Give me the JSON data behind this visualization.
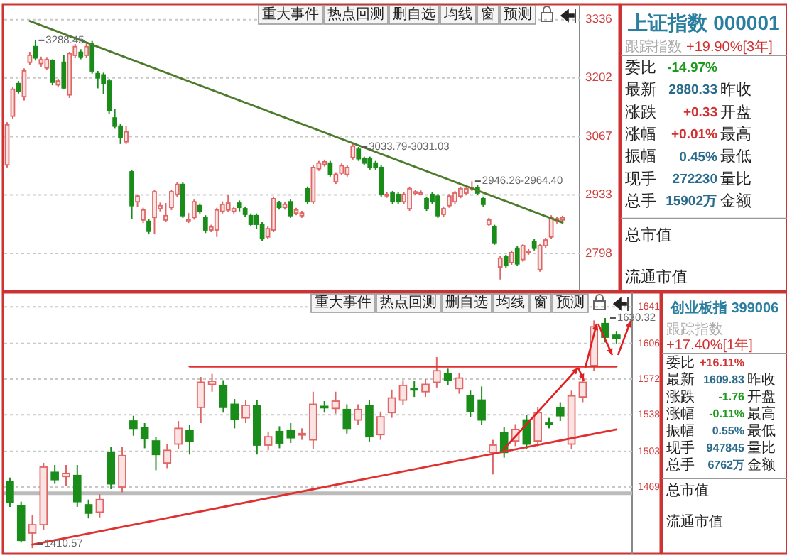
{
  "chart_data": [
    {
      "type": "candlestick",
      "categories": [
        null,
        null,
        null,
        null,
        null,
        null,
        null,
        null,
        null,
        null,
        null,
        null,
        null,
        null,
        null,
        null,
        null,
        null,
        null,
        null,
        null,
        null,
        null,
        null,
        null,
        null,
        null,
        null,
        null,
        null,
        null,
        null,
        null,
        null,
        null,
        null,
        null,
        null,
        null,
        null,
        null,
        null,
        null,
        null,
        null,
        null,
        null,
        null,
        null,
        null,
        null,
        null,
        null,
        null,
        null,
        null,
        null,
        null,
        null,
        null,
        null,
        null,
        null,
        null,
        null,
        null,
        null,
        null,
        null,
        null,
        null,
        null,
        null,
        null,
        null,
        null,
        null,
        null,
        null,
        null,
        null,
        null,
        null,
        null,
        null,
        null,
        null,
        null,
        null,
        null,
        null,
        null,
        null,
        null,
        null,
        null,
        null,
        null,
        null
      ],
      "ohlc": [
        [
          3002,
          3100,
          2996,
          3094
        ],
        [
          3114,
          3182,
          3108,
          3176
        ],
        [
          3189,
          3195,
          3166,
          3172
        ],
        [
          3159,
          3224,
          3150,
          3218
        ],
        [
          3238,
          3262,
          3232,
          3254
        ],
        [
          3274,
          3288.45,
          3242,
          3248
        ],
        [
          3235,
          3251,
          3228,
          3244
        ],
        [
          3225,
          3250,
          3221,
          3244
        ],
        [
          3241,
          3245,
          3185,
          3192
        ],
        [
          3186,
          3200,
          3180,
          3195
        ],
        [
          3238,
          3254,
          3176,
          3179
        ],
        [
          3163,
          3262,
          3156,
          3258
        ],
        [
          3254,
          3280,
          3248,
          3274
        ],
        [
          3261,
          3268,
          3245,
          3251
        ],
        [
          3254,
          3285,
          3248,
          3274
        ],
        [
          3280,
          3287,
          3212,
          3218
        ],
        [
          3212,
          3218,
          3178,
          3202
        ],
        [
          3209,
          3214,
          3165,
          3189
        ],
        [
          3195,
          3200,
          3120,
          3127
        ],
        [
          3110,
          3130,
          3085,
          3091
        ],
        [
          3091,
          3096,
          3050,
          3065
        ],
        [
          3055,
          3091,
          3050,
          3078
        ],
        [
          2986,
          2990,
          2878,
          2908
        ],
        [
          2917,
          2934,
          2905,
          2930
        ],
        [
          2875,
          2903,
          2868,
          2898
        ],
        [
          2872,
          2877,
          2842,
          2849
        ],
        [
          2881,
          2945,
          2842,
          2940
        ],
        [
          2901,
          2915,
          2895,
          2908
        ],
        [
          2875,
          2914,
          2870,
          2885
        ],
        [
          2904,
          2945,
          2898,
          2940
        ],
        [
          2934,
          2962,
          2928,
          2957
        ],
        [
          2957,
          2962,
          2880,
          2885
        ],
        [
          2873,
          2891,
          2868,
          2875
        ],
        [
          2881,
          2922,
          2876,
          2917
        ],
        [
          2908,
          2913,
          2890,
          2895
        ],
        [
          2881,
          2886,
          2845,
          2852
        ],
        [
          2852,
          2864,
          2847,
          2859
        ],
        [
          2852,
          2903,
          2836,
          2898
        ],
        [
          2895,
          2918,
          2890,
          2911
        ],
        [
          2898,
          2932,
          2893,
          2914
        ],
        [
          2895,
          2906,
          2890,
          2901
        ],
        [
          2914,
          2920,
          2895,
          2904
        ],
        [
          2901,
          2906,
          2883,
          2888
        ],
        [
          2885,
          2890,
          2860,
          2865
        ],
        [
          2885,
          2890,
          2855,
          2865
        ],
        [
          2865,
          2870,
          2827,
          2832
        ],
        [
          2836,
          2860,
          2831,
          2855
        ],
        [
          2852,
          2929,
          2847,
          2924
        ],
        [
          2914,
          2919,
          2899,
          2904
        ],
        [
          2904,
          2916,
          2899,
          2911
        ],
        [
          2917,
          2922,
          2880,
          2885
        ],
        [
          2891,
          2903,
          2886,
          2898
        ],
        [
          2885,
          2896,
          2880,
          2891
        ],
        [
          2947,
          2952,
          2912,
          2917
        ],
        [
          2917,
          3001,
          2912,
          2996
        ],
        [
          2993,
          3011,
          2988,
          3006
        ],
        [
          3003,
          3014,
          2998,
          3009
        ],
        [
          3006,
          3011,
          2975,
          2980
        ],
        [
          2963,
          2985,
          2958,
          2980
        ],
        [
          2983,
          3005,
          2978,
          3000
        ],
        [
          2980,
          3001,
          2975,
          2996
        ],
        [
          3019,
          3051,
          3014,
          3045
        ],
        [
          3038,
          3043,
          3011,
          3016
        ],
        [
          3016,
          3021,
          3001,
          3006
        ],
        [
          3016,
          3021,
          2991,
          2996
        ],
        [
          3006,
          3011,
          2991,
          2996
        ],
        [
          2996,
          3001,
          2929,
          2934
        ],
        [
          2931,
          2939,
          2926,
          2934
        ],
        [
          2937,
          2942,
          2912,
          2917
        ],
        [
          2934,
          2939,
          2912,
          2917
        ],
        [
          2917,
          2939,
          2912,
          2934
        ],
        [
          2901,
          2952,
          2896,
          2947
        ],
        [
          2937,
          2945,
          2932,
          2940
        ],
        [
          2937,
          2943,
          2932,
          2938
        ],
        [
          2924,
          2929,
          2896,
          2901
        ],
        [
          2934,
          2939,
          2912,
          2917
        ],
        [
          2930,
          2935,
          2880,
          2885
        ],
        [
          2888,
          2906,
          2883,
          2901
        ],
        [
          2908,
          2935,
          2903,
          2930
        ],
        [
          2917,
          2942,
          2912,
          2937
        ],
        [
          2930,
          2952,
          2925,
          2947
        ],
        [
          2937,
          2952,
          2932,
          2947
        ],
        [
          2947,
          2964.4,
          2942,
          2950
        ],
        [
          2950,
          2955,
          2932,
          2937
        ],
        [
          2924,
          2929,
          2906,
          2911
        ],
        [
          2865,
          2880,
          2860,
          2875
        ],
        [
          2859,
          2864,
          2818,
          2823
        ],
        [
          2767,
          2792,
          2738,
          2787
        ],
        [
          2790,
          2795,
          2765,
          2770
        ],
        [
          2777,
          2805,
          2772,
          2800
        ],
        [
          2810,
          2815,
          2769,
          2774
        ],
        [
          2784,
          2821,
          2779,
          2816
        ],
        [
          2800,
          2808,
          2795,
          2803
        ],
        [
          2826,
          2831,
          2805,
          2810
        ],
        [
          2761,
          2821,
          2756,
          2816
        ],
        [
          2816,
          2834,
          2811,
          2829
        ],
        [
          2836,
          2886,
          2831,
          2881
        ],
        [
          2872,
          2883,
          2867,
          2878
        ],
        [
          2875,
          2885,
          2870,
          2880.33
        ]
      ],
      "series": [
        {
          "type": "line",
          "values": [
            null,
            null,
            null,
            null,
            3333,
            null,
            null,
            null,
            null,
            null,
            null,
            null,
            null,
            null,
            null,
            null,
            null,
            null,
            null,
            null,
            null,
            null,
            null,
            null,
            null,
            null,
            null,
            null,
            null,
            null,
            null,
            null,
            null,
            null,
            null,
            null,
            null,
            null,
            null,
            null,
            null,
            null,
            null,
            null,
            null,
            null,
            null,
            null,
            null,
            null,
            null,
            null,
            null,
            null,
            null,
            null,
            null,
            null,
            null,
            null,
            null,
            null,
            null,
            null,
            null,
            null,
            null,
            null,
            null,
            null,
            null,
            null,
            null,
            null,
            null,
            null,
            null,
            null,
            null,
            null,
            null,
            null,
            null,
            null,
            null,
            null,
            null,
            null,
            null,
            null,
            null,
            null,
            null,
            null,
            null,
            null,
            null,
            null,
            2869
          ],
          "color": "#4b7b2b"
        }
      ],
      "ylim": [
        2718,
        3365
      ],
      "yticks": [
        2798,
        2933,
        3067,
        3202,
        3336
      ],
      "grid": "y",
      "tick_labels": "y",
      "annotations": [
        "重大事件",
        "热点回测",
        "删自选",
        "均线",
        "窗",
        "预测",
        "3288.45",
        "3033.79-3031.03",
        "2946.26-2964.40"
      ]
    },
    {
      "type": "other",
      "title": "上证指数 000001",
      "subtitle": "跟踪指数 +19.90%[3年]",
      "categories": [
        "委比",
        "最新",
        "涨跌",
        "涨幅",
        "振幅",
        "现手",
        "总手",
        "总市值",
        "流通市值"
      ],
      "value_labels": [
        "-14.97%",
        "2880.33",
        "+0.33",
        "+0.01%",
        "0.45%",
        "272230",
        "15902万",
        null,
        null
      ],
      "annotations": [
        "昨收",
        "开盘",
        "最高",
        "最低",
        "量比",
        "金额"
      ]
    },
    {
      "type": "candlestick",
      "categories": [
        null,
        null,
        null,
        null,
        null,
        null,
        null,
        null,
        null,
        null,
        null,
        null,
        null,
        null,
        null,
        null,
        null,
        null,
        null,
        null,
        null,
        null,
        null,
        null,
        null,
        null,
        null,
        null,
        null,
        null,
        null,
        null,
        null,
        null,
        null,
        null,
        null,
        null,
        null,
        null,
        null,
        null,
        null,
        null,
        null,
        null,
        null,
        null,
        null,
        null,
        null,
        null,
        null,
        null,
        null
      ],
      "ohlc": [
        [
          1474,
          1478,
          1450,
          1454
        ],
        [
          1451,
          1455,
          1416,
          1418
        ],
        [
          1425,
          1442,
          1410.57,
          1433
        ],
        [
          1433,
          1492,
          1428,
          1488
        ],
        [
          1483,
          1490,
          1472,
          1476
        ],
        [
          1479,
          1490,
          1470,
          1482
        ],
        [
          1480,
          1490,
          1450,
          1455
        ],
        [
          1452,
          1457,
          1439,
          1444
        ],
        [
          1445,
          1462,
          1440,
          1457
        ],
        [
          1502,
          1507,
          1467,
          1472
        ],
        [
          1469,
          1507,
          1464,
          1499
        ],
        [
          1532,
          1537,
          1518,
          1525
        ],
        [
          1526,
          1530,
          1506,
          1515
        ],
        [
          1513,
          1517,
          1485,
          1500
        ],
        [
          1492,
          1510,
          1487,
          1504
        ],
        [
          1510,
          1532,
          1505,
          1525
        ],
        [
          1523,
          1528,
          1500,
          1513
        ],
        [
          1545,
          1574,
          1530,
          1569
        ],
        [
          1567,
          1577,
          1560,
          1570
        ],
        [
          1566,
          1571,
          1540,
          1545
        ],
        [
          1548,
          1553,
          1525,
          1534
        ],
        [
          1535,
          1552,
          1530,
          1547
        ],
        [
          1547,
          1552,
          1500,
          1509
        ],
        [
          1509,
          1522,
          1504,
          1517
        ],
        [
          1522,
          1527,
          1506,
          1511
        ],
        [
          1523,
          1530,
          1511,
          1516
        ],
        [
          1519,
          1525,
          1514,
          1520
        ],
        [
          1514,
          1560,
          1505,
          1548
        ],
        [
          1546,
          1551,
          1540,
          1545
        ],
        [
          1544,
          1560,
          1539,
          1551
        ],
        [
          1543,
          1548,
          1520,
          1525
        ],
        [
          1533,
          1548,
          1528,
          1543
        ],
        [
          1547,
          1552,
          1512,
          1517
        ],
        [
          1519,
          1541,
          1514,
          1536
        ],
        [
          1540,
          1562,
          1535,
          1554
        ],
        [
          1552,
          1571,
          1547,
          1566
        ],
        [
          1563,
          1570,
          1555,
          1562
        ],
        [
          1560,
          1572,
          1555,
          1567
        ],
        [
          1569,
          1593,
          1564,
          1580
        ],
        [
          1577,
          1582,
          1566,
          1571
        ],
        [
          1563,
          1578,
          1558,
          1573
        ],
        [
          1556,
          1561,
          1536,
          1541
        ],
        [
          1552,
          1565,
          1528,
          1533
        ],
        [
          1502,
          1514,
          1481,
          1509
        ],
        [
          1521,
          1526,
          1497,
          1502
        ],
        [
          1513,
          1529,
          1508,
          1524
        ],
        [
          1533,
          1538,
          1505,
          1510
        ],
        [
          1513,
          1545,
          1508,
          1540
        ],
        [
          1530,
          1535,
          1525,
          1529
        ],
        [
          1545,
          1550,
          1532,
          1537
        ],
        [
          1510,
          1561,
          1505,
          1556
        ],
        [
          1555,
          1574,
          1550,
          1569
        ],
        [
          1585,
          1628,
          1580,
          1622
        ],
        [
          1625,
          1630.32,
          1607,
          1612
        ],
        [
          1614,
          1618,
          1606,
          1611
        ]
      ],
      "series": [
        {
          "type": "line",
          "values": [
            null,
            null,
            1414,
            null,
            null,
            null,
            null,
            null,
            null,
            null,
            null,
            null,
            null,
            null,
            null,
            null,
            null,
            null,
            null,
            null,
            null,
            null,
            null,
            null,
            null,
            null,
            null,
            null,
            null,
            null,
            null,
            null,
            null,
            null,
            null,
            null,
            null,
            null,
            null,
            null,
            null,
            null,
            null,
            null,
            null,
            null,
            null,
            null,
            null,
            null,
            null,
            null,
            null,
            null,
            1524
          ],
          "color": "#e03030"
        },
        {
          "type": "line",
          "values": [
            null,
            null,
            null,
            null,
            null,
            null,
            null,
            null,
            null,
            null,
            null,
            null,
            null,
            null,
            null,
            null,
            1584,
            null,
            null,
            null,
            null,
            null,
            null,
            null,
            null,
            null,
            null,
            null,
            null,
            null,
            null,
            null,
            null,
            null,
            null,
            null,
            null,
            null,
            null,
            null,
            null,
            null,
            null,
            null,
            null,
            null,
            null,
            null,
            null,
            null,
            null,
            null,
            null,
            null,
            1584
          ],
          "color": "#e03030"
        }
      ],
      "ref_lines": [
        {
          "axis": "y",
          "value": 1463,
          "color": "#bbbbbb"
        }
      ],
      "ylim": [
        1408,
        1652
      ],
      "yticks": [
        1469,
        1503,
        1538,
        1572,
        1606,
        1641
      ],
      "grid": "y",
      "tick_labels": "y",
      "annotations": [
        "重大事件",
        "热点回测",
        "删自选",
        "均线",
        "窗",
        "预测",
        "1630.32",
        "1410.57"
      ]
    },
    {
      "type": "other",
      "title": "创业板指 399006",
      "subtitle": "跟踪指数 +17.40%[1年]",
      "categories": [
        "委比",
        "最新",
        "涨跌",
        "涨幅",
        "振幅",
        "现手",
        "总手",
        "总市值",
        "流通市值"
      ],
      "value_labels": [
        "+16.11%",
        "1609.83",
        "-1.76",
        "-0.11%",
        "0.55%",
        "947845",
        "6762万",
        null,
        null
      ],
      "annotations": [
        "昨收",
        "开盘",
        "最高",
        "最低",
        "量比",
        "金额"
      ]
    }
  ]
}
